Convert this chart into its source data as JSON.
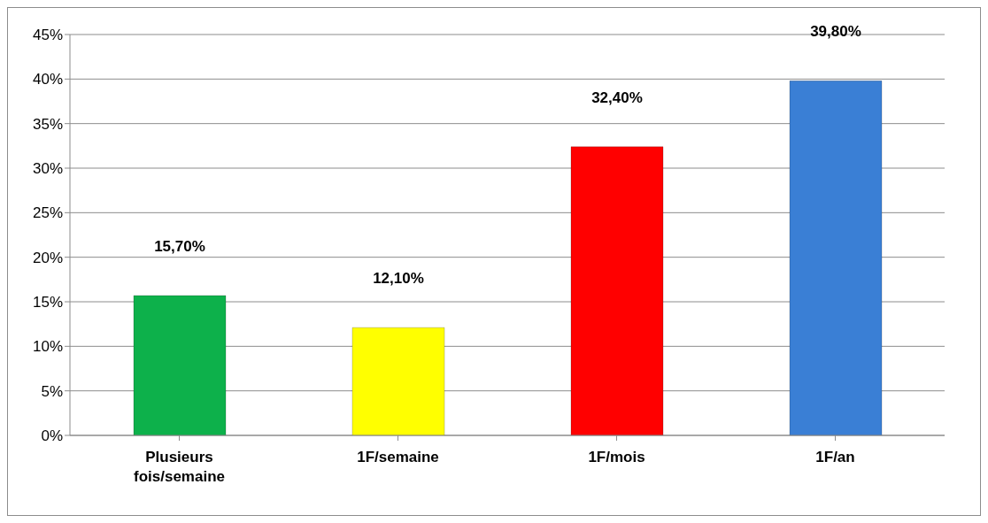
{
  "chart_data": {
    "type": "bar",
    "categories": [
      "Plusieurs fois/semaine",
      "1F/semaine",
      "1F/mois",
      "1F/an"
    ],
    "values": [
      15.7,
      12.1,
      32.4,
      39.8
    ],
    "colors": [
      "#0db14b",
      "#ffff00",
      "#ff0000",
      "#3a7fd5"
    ],
    "value_labels": [
      "15,70%",
      "12,10%",
      "32,40%",
      "39,80%"
    ],
    "ylim": [
      0,
      45
    ],
    "yticks": [
      {
        "value": 0,
        "label": "0%"
      },
      {
        "value": 5,
        "label": "5%"
      },
      {
        "value": 10,
        "label": "10%"
      },
      {
        "value": 15,
        "label": "15%"
      },
      {
        "value": 20,
        "label": "20%"
      },
      {
        "value": 25,
        "label": "25%"
      },
      {
        "value": 30,
        "label": "30%"
      },
      {
        "value": 35,
        "label": "35%"
      },
      {
        "value": 40,
        "label": "40%"
      },
      {
        "value": 45,
        "label": "45%"
      }
    ],
    "grid": "y",
    "legend": false
  }
}
